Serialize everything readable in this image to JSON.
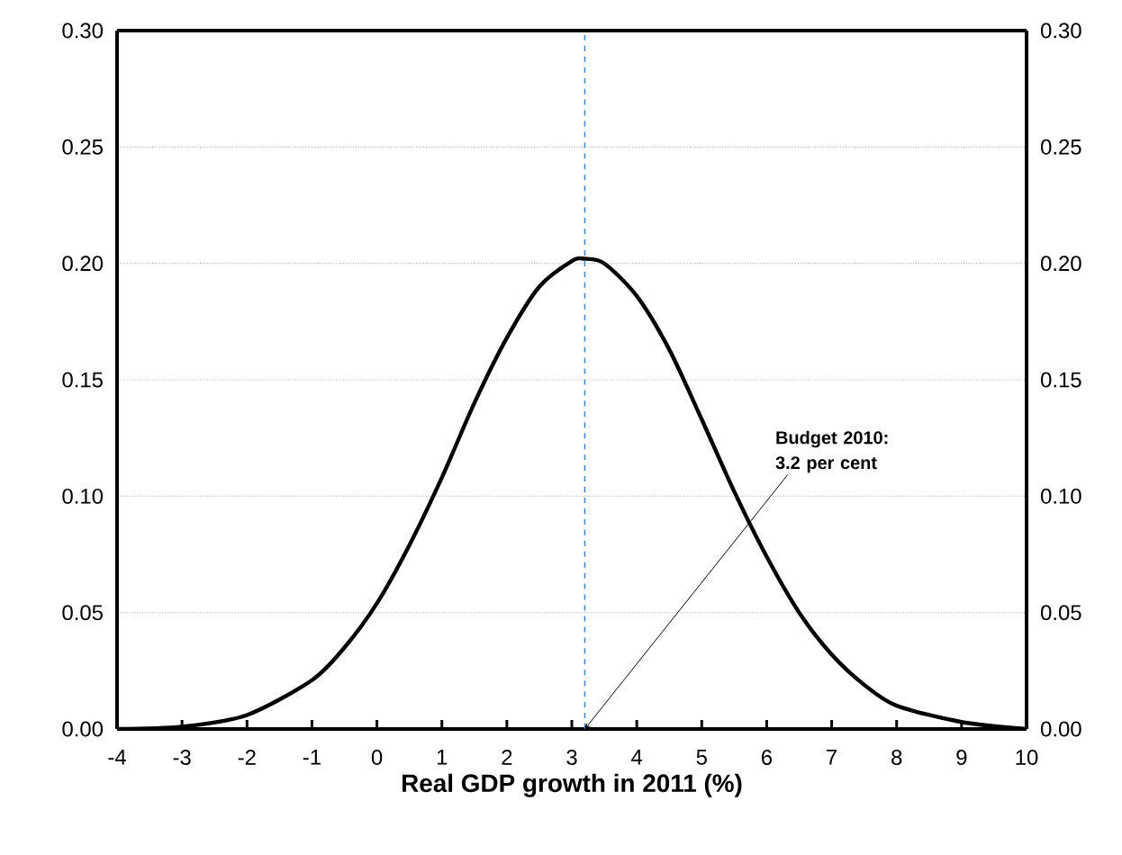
{
  "chart_data": {
    "type": "line",
    "xlabel": "Real GDP growth in 2011 (%)",
    "x": [
      -4,
      -3,
      -2,
      -1,
      -0.5,
      0,
      0.5,
      1,
      1.5,
      2,
      2.5,
      3,
      3.2,
      3.5,
      4,
      4.5,
      5,
      5.5,
      6,
      6.5,
      7,
      7.5,
      8,
      9,
      10
    ],
    "series": [
      {
        "color": "#000000",
        "values": [
          0.0,
          0.001,
          0.006,
          0.021,
          0.035,
          0.054,
          0.079,
          0.108,
          0.14,
          0.168,
          0.19,
          0.201,
          0.202,
          0.2,
          0.186,
          0.163,
          0.133,
          0.102,
          0.074,
          0.05,
          0.032,
          0.019,
          0.01,
          0.003,
          0.0
        ]
      }
    ],
    "xlim": [
      -4,
      10
    ],
    "xticks": [
      -4,
      -3,
      -2,
      -1,
      0,
      1,
      2,
      3,
      4,
      5,
      6,
      7,
      8,
      9,
      10
    ],
    "ylim": [
      0,
      0.3
    ],
    "yticks": [
      {
        "value": 0,
        "label": "0.00"
      },
      {
        "value": 0.05,
        "label": "0.05"
      },
      {
        "value": 0.1,
        "label": "0.10"
      },
      {
        "value": 0.15,
        "label": "0.15"
      },
      {
        "value": 0.2,
        "label": "0.20"
      },
      {
        "value": 0.25,
        "label": "0.25"
      },
      {
        "value": 0.3,
        "label": "0.30"
      }
    ],
    "y2lim": [
      0,
      0.3
    ],
    "y2ticks": [
      {
        "value": 0,
        "label": "0.00"
      },
      {
        "value": 0.05,
        "label": "0.05"
      },
      {
        "value": 0.1,
        "label": "0.10"
      },
      {
        "value": 0.15,
        "label": "0.15"
      },
      {
        "value": 0.2,
        "label": "0.20"
      },
      {
        "value": 0.25,
        "label": "0.25"
      },
      {
        "value": 0.3,
        "label": "0.30"
      }
    ],
    "ref_lines": [
      {
        "axis": "x",
        "value": 3.2,
        "color": "#3b8be0",
        "line_style": "dashed"
      }
    ],
    "annotations": [
      {
        "text": "Budget 2010: 3.2 per cent",
        "x": 3.2,
        "y": 0
      }
    ],
    "grid": "y",
    "marker": "none",
    "line_style": "solid"
  }
}
